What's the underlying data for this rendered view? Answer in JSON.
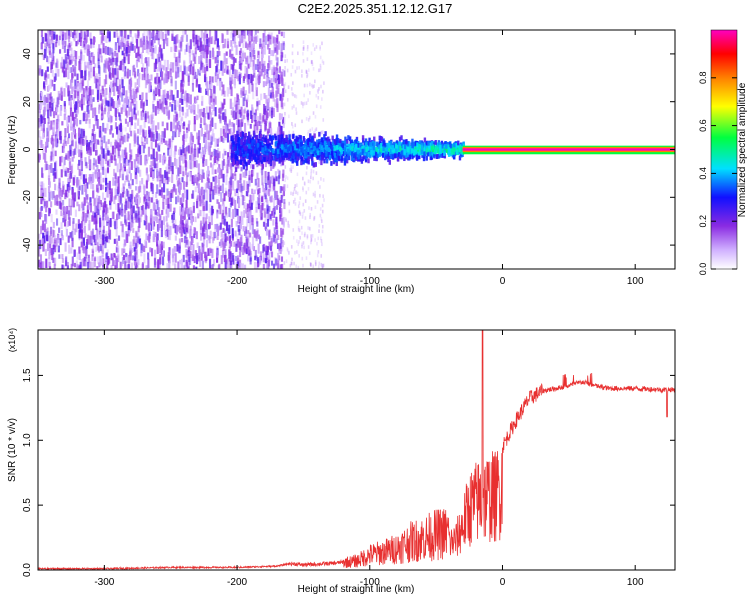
{
  "title": "C2E2.2025.351.12.12.G17",
  "chart_data": [
    {
      "type": "heatmap",
      "xlabel": "Height of straight line (km)",
      "ylabel": "Frequency (Hz)",
      "xlim": [
        -350,
        130
      ],
      "ylim": [
        -50,
        50
      ],
      "xticks": [
        -300,
        -200,
        -100,
        0,
        100
      ],
      "yticks": [
        -40,
        -20,
        0,
        20,
        40
      ],
      "colorbar": {
        "label": "Normalized spectral amplitude",
        "range": [
          0,
          1
        ],
        "ticks": [
          0.0,
          0.2,
          0.4,
          0.6,
          0.8
        ],
        "tick_labels": [
          "0.0",
          "0.2",
          "0.4",
          "0.6",
          "0.8"
        ],
        "colors": [
          "#ffffff",
          "#8a2be2",
          "#1010ff",
          "#00e0ff",
          "#00ff40",
          "#ffff00",
          "#ff8000",
          "#ff0000",
          "#ff00c0"
        ]
      },
      "regions": [
        {
          "description": "scattered noise",
          "x": [
            -350,
            -165
          ],
          "freq": [
            -50,
            50
          ],
          "amplitude": 0.12
        },
        {
          "description": "sparse noise",
          "x": [
            -165,
            -135
          ],
          "freq": [
            -50,
            45
          ],
          "amplitude": 0.05
        },
        {
          "description": "broadened signal",
          "x": [
            -205,
            -30
          ],
          "freq_center": 0,
          "freq_halfwidth": [
            10,
            4
          ],
          "amplitude": [
            0.15,
            0.45
          ]
        },
        {
          "description": "narrow carrier",
          "x": [
            -30,
            130
          ],
          "freq": 0,
          "amplitude": 1.0
        }
      ]
    },
    {
      "type": "line",
      "xlabel": "Height of straight line (km)",
      "ylabel": "SNR (10 * v/v)",
      "y_multiplier": "(x10⁴)",
      "xlim": [
        -350,
        130
      ],
      "ylim": [
        0,
        1.85
      ],
      "xticks": [
        -300,
        -200,
        -100,
        0,
        100
      ],
      "yticks": [
        0.0,
        0.5,
        1.0,
        1.5
      ],
      "ytick_labels": [
        "0.0",
        "0.5",
        "1.0",
        "1.5"
      ],
      "series": [
        {
          "color": "#e83030",
          "x": [
            -350,
            -300,
            -250,
            -200,
            -170,
            -160,
            -150,
            -130,
            -110,
            -100,
            -90,
            -80,
            -70,
            -60,
            -50,
            -40,
            -35,
            -30,
            -25,
            -20,
            -15,
            -10,
            -5,
            0,
            10,
            20,
            30,
            40,
            50,
            60,
            70,
            80,
            100,
            120,
            130
          ],
          "y": [
            0.01,
            0.01,
            0.02,
            0.02,
            0.03,
            0.05,
            0.04,
            0.05,
            0.07,
            0.12,
            0.14,
            0.17,
            0.22,
            0.25,
            0.28,
            0.3,
            0.33,
            0.5,
            0.68,
            0.75,
            0.8,
            0.82,
            0.82,
            0.95,
            1.15,
            1.32,
            1.38,
            1.4,
            1.42,
            1.45,
            1.42,
            1.4,
            1.4,
            1.39,
            1.39
          ]
        }
      ]
    }
  ]
}
